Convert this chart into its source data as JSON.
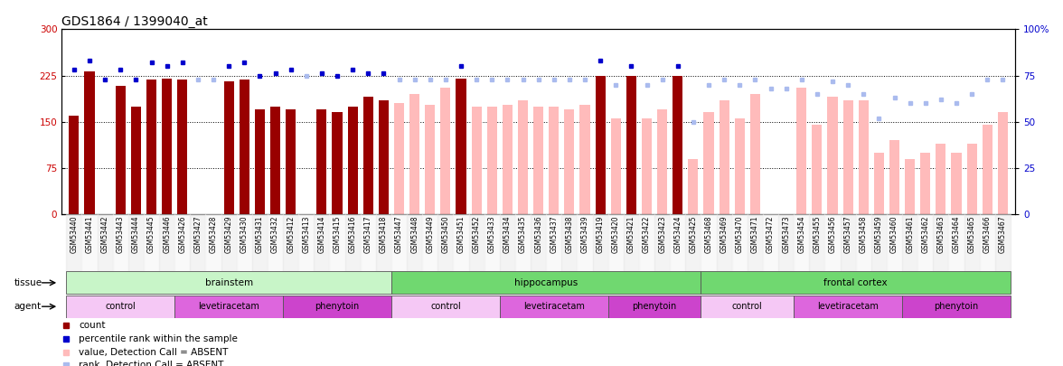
{
  "title": "GDS1864 / 1399040_at",
  "samples": [
    "GSM53440",
    "GSM53441",
    "GSM53442",
    "GSM53443",
    "GSM53444",
    "GSM53445",
    "GSM53446",
    "GSM53426",
    "GSM53427",
    "GSM53428",
    "GSM53429",
    "GSM53430",
    "GSM53431",
    "GSM53432",
    "GSM53412",
    "GSM53413",
    "GSM53414",
    "GSM53415",
    "GSM53416",
    "GSM53417",
    "GSM53418",
    "GSM53447",
    "GSM53448",
    "GSM53449",
    "GSM53450",
    "GSM53451",
    "GSM53452",
    "GSM53433",
    "GSM53434",
    "GSM53435",
    "GSM53436",
    "GSM53437",
    "GSM53438",
    "GSM53439",
    "GSM53419",
    "GSM53420",
    "GSM53421",
    "GSM53422",
    "GSM53423",
    "GSM53424",
    "GSM53425",
    "GSM53468",
    "GSM53469",
    "GSM53470",
    "GSM53471",
    "GSM53472",
    "GSM53473",
    "GSM53454",
    "GSM53455",
    "GSM53456",
    "GSM53457",
    "GSM53458",
    "GSM53459",
    "GSM53460",
    "GSM53461",
    "GSM53462",
    "GSM53463",
    "GSM53464",
    "GSM53465",
    "GSM53466",
    "GSM53467"
  ],
  "bar_values": [
    160,
    232,
    0,
    208,
    175,
    218,
    220,
    218,
    0,
    0,
    215,
    218,
    170,
    175,
    170,
    0,
    170,
    165,
    175,
    190,
    185,
    180,
    195,
    178,
    205,
    220,
    175,
    175,
    178,
    185,
    175,
    175,
    170,
    178,
    225,
    155,
    225,
    155,
    170,
    225,
    90,
    165,
    185,
    155,
    195,
    0,
    0,
    205,
    145,
    190,
    185,
    185,
    100,
    120,
    90,
    100,
    115,
    100,
    115,
    145,
    165
  ],
  "bar_absent": [
    false,
    false,
    false,
    false,
    false,
    false,
    false,
    false,
    true,
    true,
    false,
    false,
    false,
    false,
    false,
    true,
    false,
    false,
    false,
    false,
    false,
    true,
    true,
    true,
    true,
    false,
    true,
    true,
    true,
    true,
    true,
    true,
    true,
    true,
    false,
    true,
    false,
    true,
    true,
    false,
    true,
    true,
    true,
    true,
    true,
    true,
    true,
    true,
    true,
    true,
    true,
    true,
    true,
    true,
    true,
    true,
    true,
    true,
    true,
    true,
    true
  ],
  "rank_values": [
    78,
    83,
    73,
    78,
    73,
    82,
    80,
    82,
    73,
    73,
    80,
    82,
    75,
    76,
    78,
    75,
    76,
    75,
    78,
    76,
    76,
    73,
    73,
    73,
    73,
    80,
    73,
    73,
    73,
    73,
    73,
    73,
    73,
    73,
    83,
    70,
    80,
    70,
    73,
    80,
    50,
    70,
    73,
    70,
    73,
    68,
    68,
    73,
    65,
    72,
    70,
    65,
    52,
    63,
    60,
    60,
    62,
    60,
    65,
    73,
    73
  ],
  "rank_absent": [
    false,
    false,
    false,
    false,
    false,
    false,
    false,
    false,
    true,
    true,
    false,
    false,
    false,
    false,
    false,
    true,
    false,
    false,
    false,
    false,
    false,
    true,
    true,
    true,
    true,
    false,
    true,
    true,
    true,
    true,
    true,
    true,
    true,
    true,
    false,
    true,
    false,
    true,
    true,
    false,
    true,
    true,
    true,
    true,
    true,
    true,
    true,
    true,
    true,
    true,
    true,
    true,
    true,
    true,
    true,
    true,
    true,
    true,
    true,
    true,
    true
  ],
  "tissue_groups": [
    {
      "label": "brainstem",
      "start": 0,
      "end": 20,
      "color": "#c8f5c8"
    },
    {
      "label": "hippocampus",
      "start": 21,
      "end": 40,
      "color": "#70d870"
    },
    {
      "label": "frontal cortex",
      "start": 41,
      "end": 60,
      "color": "#70d870"
    }
  ],
  "agent_groups": [
    {
      "label": "control",
      "start": 0,
      "end": 6,
      "color": "#f5c8f5"
    },
    {
      "label": "levetiracetam",
      "start": 7,
      "end": 13,
      "color": "#dd66dd"
    },
    {
      "label": "phenytoin",
      "start": 14,
      "end": 20,
      "color": "#cc44cc"
    },
    {
      "label": "control",
      "start": 21,
      "end": 27,
      "color": "#f5c8f5"
    },
    {
      "label": "levetiracetam",
      "start": 28,
      "end": 34,
      "color": "#dd66dd"
    },
    {
      "label": "phenytoin",
      "start": 35,
      "end": 40,
      "color": "#cc44cc"
    },
    {
      "label": "control",
      "start": 41,
      "end": 46,
      "color": "#f5c8f5"
    },
    {
      "label": "levetiracetam",
      "start": 47,
      "end": 53,
      "color": "#dd66dd"
    },
    {
      "label": "phenytoin",
      "start": 54,
      "end": 60,
      "color": "#cc44cc"
    }
  ],
  "ylim_left": [
    0,
    300
  ],
  "ylim_right": [
    0,
    100
  ],
  "yticks_left": [
    0,
    75,
    150,
    225,
    300
  ],
  "yticks_right": [
    0,
    25,
    50,
    75,
    100
  ],
  "color_bar_present": "#990000",
  "color_bar_absent": "#ffbbbb",
  "color_rank_present": "#0000cc",
  "color_rank_absent": "#aabbee",
  "title_fontsize": 10,
  "bar_width": 0.65
}
